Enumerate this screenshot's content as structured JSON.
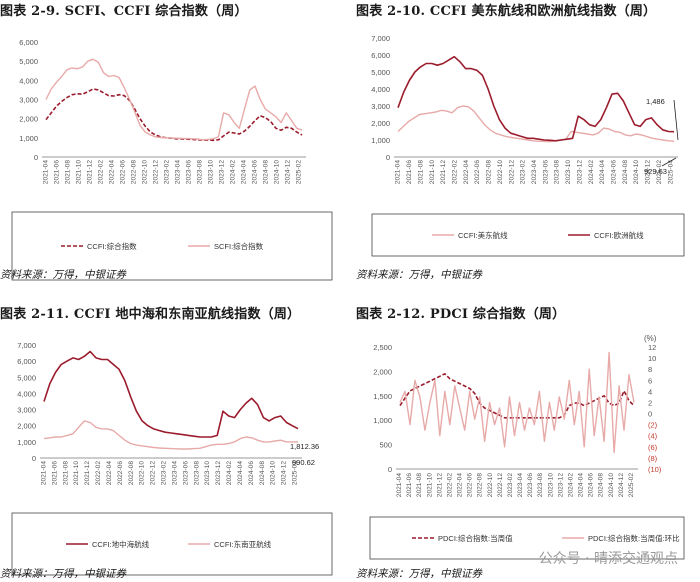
{
  "titles": {
    "p1": "图表 2-9. SCFI、CCFI 综合指数（周）",
    "p2": "图表 2-10. CCFI 美东航线和欧洲航线指数（周）",
    "p3": "图表 2-11. CCFI 地中海和东南亚航线指数（周）",
    "p4": "图表 2-12. PDCI 综合指数（周）"
  },
  "source": "资料来源：万得，中银证券",
  "watermark": "公众号 · 晴添交通观点",
  "colors": {
    "dark": "#9b1c2c",
    "light": "#e7aaa8",
    "axis": "#777777",
    "text": "#555555"
  },
  "chart_data": [
    {
      "type": "line",
      "yticks": [
        "0",
        "1,000",
        "2,000",
        "3,000",
        "4,000",
        "5,000",
        "6,000"
      ],
      "ylim": [
        0,
        6000
      ],
      "xticks": [
        "2021-04",
        "2021-06",
        "2021-08",
        "2021-10",
        "2021-12",
        "2022-02",
        "2022-04",
        "2022-06",
        "2022-08",
        "2022-10",
        "2022-12",
        "2023-02",
        "2023-04",
        "2023-06",
        "2023-08",
        "2023-10",
        "2023-12",
        "2024-02",
        "2024-04",
        "2024-06",
        "2024-08",
        "2024-10",
        "2024-12",
        "2025-02"
      ],
      "series": [
        {
          "name": "CCFI:综合指数",
          "style": "dashed",
          "color": "dark",
          "values": [
            1950,
            2300,
            2650,
            2900,
            3100,
            3250,
            3300,
            3280,
            3400,
            3550,
            3500,
            3350,
            3200,
            3180,
            3250,
            3200,
            2950,
            2500,
            2000,
            1600,
            1300,
            1150,
            1050,
            1000,
            980,
            950,
            940,
            930,
            920,
            900,
            880,
            880,
            870,
            900,
            1100,
            1300,
            1250,
            1200,
            1350,
            1600,
            1900,
            2150,
            2050,
            1850,
            1500,
            1400,
            1550,
            1500,
            1300,
            1150
          ]
        },
        {
          "name": "SCFI:综合指数",
          "style": "solid",
          "color": "light",
          "values": [
            3000,
            3550,
            3900,
            4200,
            4550,
            4650,
            4600,
            4700,
            5000,
            5100,
            4950,
            4400,
            4200,
            4250,
            4150,
            3600,
            3000,
            2350,
            1650,
            1300,
            1150,
            1050,
            1020,
            1000,
            990,
            980,
            970,
            960,
            950,
            940,
            900,
            920,
            950,
            1050,
            2300,
            2200,
            1800,
            1500,
            2500,
            3500,
            3700,
            3000,
            2500,
            2300,
            2100,
            1800,
            2300,
            1900,
            1500,
            1400
          ]
        }
      ]
    },
    {
      "type": "line",
      "yticks": [
        "0",
        "1,000",
        "2,000",
        "3,000",
        "4,000",
        "5,000",
        "6,000",
        "7,000"
      ],
      "ylim": [
        0,
        7000
      ],
      "xticks": [
        "2021-04",
        "2021-06",
        "2021-08",
        "2021-10",
        "2021-12",
        "2022-02",
        "2022-04",
        "2022-06",
        "2022-08",
        "2022-10",
        "2022-12",
        "2023-02",
        "2023-04",
        "2023-06",
        "2023-08",
        "2023-10",
        "2023-12",
        "2024-02",
        "2024-04",
        "2024-06",
        "2024-08",
        "2024-10",
        "2024-12",
        "2025-02",
        "2025-04"
      ],
      "annotations": [
        "1,486",
        "929.63"
      ],
      "series": [
        {
          "name": "CCFI:美东航线",
          "color": "light",
          "values": [
            1500,
            1800,
            2100,
            2300,
            2500,
            2550,
            2600,
            2650,
            2750,
            2700,
            2600,
            2900,
            3000,
            2950,
            2700,
            2300,
            1900,
            1600,
            1400,
            1300,
            1200,
            1150,
            1100,
            1050,
            1000,
            950,
            930,
            920,
            900,
            950,
            1000,
            1050,
            1500,
            1450,
            1400,
            1350,
            1300,
            1400,
            1700,
            1650,
            1500,
            1450,
            1300,
            1250,
            1350,
            1300,
            1200,
            1100,
            1050,
            1000,
            950,
            929.63
          ]
        },
        {
          "name": "CCFI:欧洲航线",
          "color": "dark",
          "values": [
            2900,
            3800,
            4500,
            5000,
            5300,
            5500,
            5500,
            5400,
            5500,
            5700,
            5900,
            5600,
            5200,
            5200,
            5100,
            4800,
            4000,
            3000,
            2200,
            1700,
            1400,
            1300,
            1200,
            1100,
            1100,
            1050,
            1000,
            980,
            950,
            1000,
            1050,
            1100,
            2400,
            2200,
            1900,
            1800,
            2200,
            2900,
            3700,
            3750,
            3300,
            2600,
            1900,
            1800,
            2200,
            2300,
            1900,
            1600,
            1500,
            1486
          ]
        }
      ]
    },
    {
      "type": "line",
      "yticks": [
        "0",
        "1,000",
        "2,000",
        "3,000",
        "4,000",
        "5,000",
        "6,000",
        "7,000"
      ],
      "ylim": [
        0,
        7000
      ],
      "xticks": [
        "2021-04",
        "2021-06",
        "2021-08",
        "2021-10",
        "2021-12",
        "2022-02",
        "2022-04",
        "2022-06",
        "2022-08",
        "2022-10",
        "2022-12",
        "2023-02",
        "2023-04",
        "2023-06",
        "2023-08",
        "2023-10",
        "2023-12",
        "2024-02",
        "2024-04",
        "2024-06",
        "2024-08",
        "2024-10",
        "2024-12",
        "2025-02"
      ],
      "annotations": [
        "1,812.36",
        "990.62"
      ],
      "series": [
        {
          "name": "CCFI:地中海航线",
          "color": "dark",
          "values": [
            3500,
            4600,
            5300,
            5800,
            6000,
            6200,
            6100,
            6300,
            6600,
            6200,
            6100,
            6100,
            5800,
            5500,
            4800,
            3800,
            2900,
            2300,
            2000,
            1800,
            1700,
            1600,
            1550,
            1500,
            1450,
            1400,
            1350,
            1300,
            1300,
            1300,
            1400,
            2900,
            2600,
            2500,
            3000,
            3400,
            3700,
            3300,
            2500,
            2300,
            2500,
            2600,
            2200,
            2000,
            1812.36
          ]
        },
        {
          "name": "CCFI:东南亚航线",
          "color": "light",
          "values": [
            1200,
            1250,
            1300,
            1300,
            1400,
            1500,
            1900,
            2300,
            2200,
            1900,
            1800,
            1800,
            1700,
            1400,
            1100,
            900,
            800,
            750,
            700,
            650,
            620,
            600,
            580,
            570,
            560,
            560,
            580,
            600,
            700,
            800,
            850,
            850,
            900,
            1000,
            1200,
            1300,
            1250,
            1100,
            1000,
            1000,
            1050,
            1100,
            1000,
            1000,
            990.62
          ]
        }
      ]
    },
    {
      "type": "line",
      "yticks": [
        "0",
        "500",
        "1,000",
        "1,500",
        "2,000",
        "2,500"
      ],
      "ylim": [
        0,
        2500
      ],
      "y2ticks": [
        "(10)",
        "(8)",
        "(6)",
        "(4)",
        "(2)",
        "0",
        "2",
        "4",
        "6",
        "8",
        "10",
        "12"
      ],
      "y2lim": [
        -10,
        12
      ],
      "y2unit": "(%)",
      "xticks": [
        "2021-04",
        "2021-06",
        "2021-08",
        "2021-10",
        "2021-12",
        "2022-02",
        "2022-04",
        "2022-06",
        "2022-08",
        "2022-10",
        "2022-12",
        "2023-02",
        "2023-04",
        "2023-06",
        "2023-08",
        "2023-10",
        "2023-12",
        "2024-02",
        "2024-04",
        "2024-06",
        "2024-08",
        "2024-10",
        "2024-12",
        "2025-02"
      ],
      "series": [
        {
          "name": "PDCI:综合指数:当周值",
          "style": "dashed",
          "color": "dark",
          "axis": "left",
          "values": [
            1300,
            1450,
            1600,
            1650,
            1700,
            1750,
            1800,
            1850,
            1900,
            1950,
            1850,
            1800,
            1750,
            1700,
            1650,
            1550,
            1350,
            1250,
            1200,
            1150,
            1100,
            1050,
            1050,
            1050,
            1050,
            1050,
            1050,
            1050,
            1050,
            1050,
            1050,
            1050,
            1050,
            1100,
            1300,
            1350,
            1350,
            1300,
            1350,
            1400,
            1450,
            1500,
            1350,
            1300,
            1350,
            1600,
            1400,
            1300
          ]
        },
        {
          "name": "PDCI:综合指数:当周值:环比",
          "style": "solid",
          "color": "light",
          "axis": "right",
          "values": [
            2,
            4,
            -2,
            6,
            3,
            -3,
            2,
            6,
            -4,
            4,
            -2,
            5,
            1,
            -3,
            4,
            -1,
            3,
            -5,
            2,
            -2,
            1,
            -6,
            3,
            -4,
            2,
            -3,
            1,
            -2,
            4,
            -5,
            2,
            -3,
            3,
            -1,
            6,
            -2,
            4,
            -6,
            8,
            -4,
            3,
            -5,
            11,
            -7,
            5,
            -3,
            7,
            2
          ]
        }
      ]
    }
  ]
}
